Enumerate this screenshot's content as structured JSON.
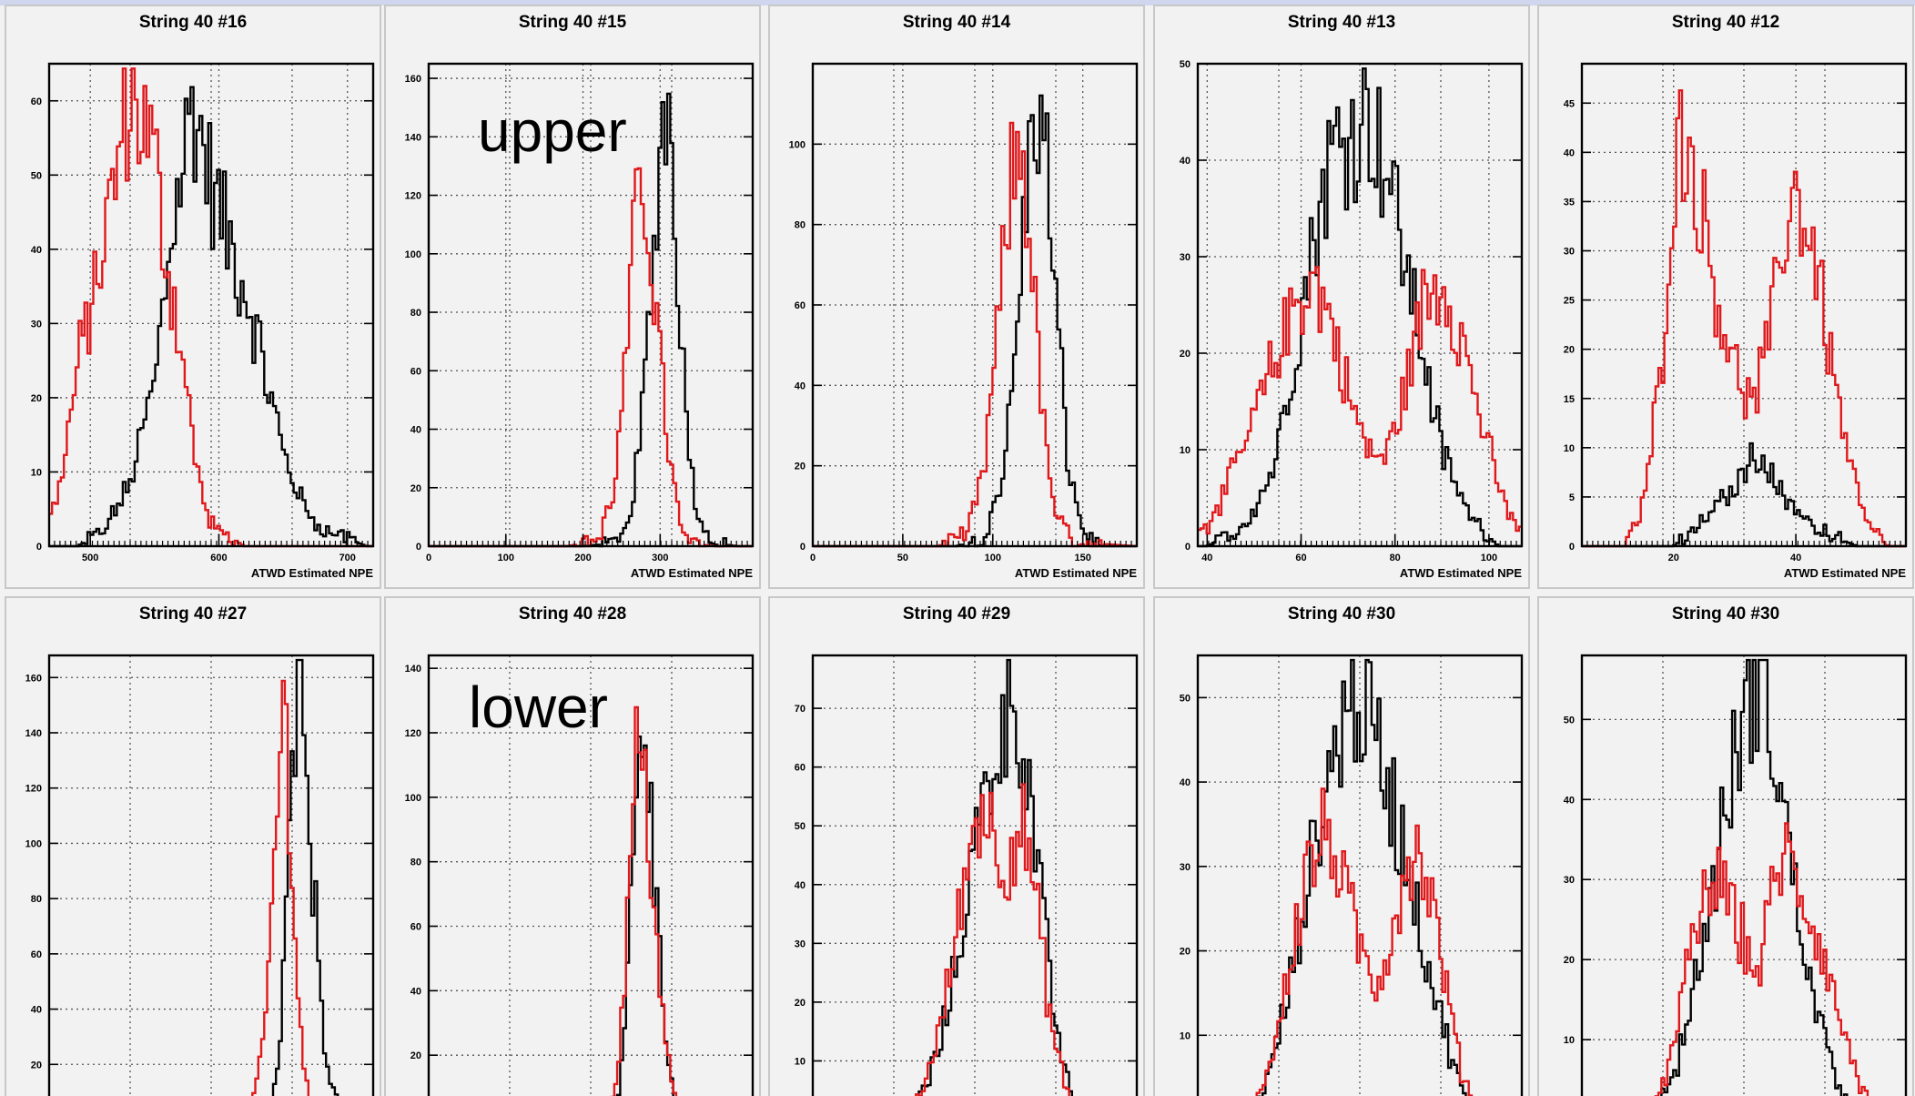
{
  "annotations": {
    "upper": "upper",
    "lower": "lower"
  },
  "colors": {
    "series_a": "#000000",
    "series_b": "#e0181b",
    "frame": "#000000",
    "grid": "#555555",
    "panel_bg": "#f2f2f2",
    "plot_bg": "#f2f2f2"
  },
  "chart_data": [
    {
      "type": "line",
      "title": "String 40 #16",
      "xlabel": "ATWD Estimated NPE",
      "xlim": [
        468,
        720
      ],
      "ylim": [
        0,
        65
      ],
      "xticks": [
        500,
        600,
        700
      ],
      "xtick_labels": [
        "500",
        "600",
        "700"
      ],
      "yticks": [
        0,
        10,
        20,
        30,
        40,
        50,
        60
      ],
      "ytick_labels": [
        "0",
        "10",
        "20",
        "30",
        "40",
        "50",
        "60"
      ],
      "series": [
        {
          "name": "",
          "color": "#000000",
          "x": [
            470,
            490,
            510,
            530,
            550,
            565,
            580,
            595,
            610,
            625,
            640,
            655,
            670,
            685,
            700,
            715
          ],
          "y": [
            0,
            0,
            2,
            8,
            22,
            45,
            60,
            48,
            40,
            32,
            20,
            10,
            4,
            2,
            1,
            0
          ]
        },
        {
          "name": "",
          "color": "#e0181b",
          "x": [
            470,
            480,
            490,
            500,
            510,
            520,
            530,
            540,
            550,
            560,
            570,
            580,
            590,
            600,
            610,
            620
          ],
          "y": [
            4,
            12,
            24,
            32,
            40,
            50,
            60,
            58,
            52,
            38,
            28,
            14,
            4,
            2,
            1,
            0
          ]
        }
      ]
    },
    {
      "type": "line",
      "title": "String 40 #15",
      "xlabel": "ATWD Estimated NPE",
      "xlim": [
        0,
        420
      ],
      "ylim": [
        0,
        165
      ],
      "xticks": [
        0,
        100,
        200,
        300
      ],
      "xtick_labels": [
        "0",
        "100",
        "200",
        "300"
      ],
      "yticks": [
        0,
        20,
        40,
        60,
        80,
        100,
        120,
        140,
        160
      ],
      "ytick_labels": [
        "0",
        "20",
        "40",
        "60",
        "80",
        "100",
        "120",
        "140",
        "160"
      ],
      "series": [
        {
          "name": "",
          "color": "#000000",
          "x": [
            0,
            200,
            240,
            260,
            275,
            290,
            300,
            310,
            320,
            335,
            350,
            370,
            400,
            420
          ],
          "y": [
            0,
            0,
            1,
            8,
            40,
            90,
            140,
            155,
            110,
            40,
            8,
            1,
            0,
            0
          ]
        },
        {
          "name": "",
          "color": "#e0181b",
          "x": [
            0,
            180,
            220,
            240,
            255,
            265,
            275,
            285,
            295,
            310,
            325,
            345,
            370,
            420
          ],
          "y": [
            0,
            0,
            2,
            18,
            60,
            100,
            130,
            110,
            80,
            35,
            8,
            1,
            0,
            0
          ]
        }
      ]
    },
    {
      "type": "line",
      "title": "String 40 #14",
      "xlabel": "ATWD Estimated NPE",
      "xlim": [
        0,
        180
      ],
      "ylim": [
        0,
        120
      ],
      "xticks": [
        0,
        50,
        100,
        150
      ],
      "xtick_labels": [
        "0",
        "50",
        "100",
        "150"
      ],
      "yticks": [
        0,
        20,
        40,
        60,
        80,
        100
      ],
      "ytick_labels": [
        "0",
        "20",
        "40",
        "60",
        "80",
        "100"
      ],
      "series": [
        {
          "name": "",
          "color": "#000000",
          "x": [
            0,
            80,
            95,
            105,
            112,
            118,
            124,
            130,
            136,
            142,
            150,
            160,
            180
          ],
          "y": [
            0,
            0,
            2,
            15,
            45,
            85,
            110,
            95,
            55,
            20,
            4,
            0,
            0
          ]
        },
        {
          "name": "",
          "color": "#e0181b",
          "x": [
            0,
            70,
            85,
            95,
            103,
            110,
            116,
            122,
            128,
            135,
            145,
            180
          ],
          "y": [
            0,
            0,
            3,
            18,
            55,
            90,
            100,
            70,
            30,
            8,
            1,
            0
          ]
        }
      ]
    },
    {
      "type": "line",
      "title": "String 40 #13",
      "xlabel": "ATWD Estimated NPE",
      "xlim": [
        38,
        107
      ],
      "ylim": [
        0,
        50
      ],
      "xticks": [
        40,
        60,
        80,
        100
      ],
      "xtick_labels": [
        "40",
        "60",
        "80",
        "100"
      ],
      "yticks": [
        0,
        10,
        20,
        30,
        40,
        50
      ],
      "ytick_labels": [
        "0",
        "10",
        "20",
        "30",
        "40",
        "50"
      ],
      "series": [
        {
          "name": "",
          "color": "#000000",
          "x": [
            40,
            48,
            54,
            58,
            62,
            66,
            70,
            74,
            78,
            82,
            86,
            90,
            94,
            98,
            102,
            106
          ],
          "y": [
            0,
            2,
            8,
            18,
            30,
            40,
            43,
            45,
            40,
            30,
            20,
            10,
            5,
            2,
            0,
            0
          ]
        },
        {
          "name": "",
          "color": "#e0181b",
          "x": [
            40,
            46,
            52,
            58,
            62,
            66,
            70,
            74,
            78,
            82,
            86,
            90,
            94,
            98,
            102,
            106
          ],
          "y": [
            2,
            8,
            16,
            24,
            28,
            24,
            16,
            10,
            9,
            16,
            25,
            28,
            22,
            14,
            6,
            2
          ]
        }
      ]
    },
    {
      "type": "line",
      "title": "String 40 #12",
      "xlabel": "ATWD Estimated NPE",
      "xlim": [
        5,
        58
      ],
      "ylim": [
        0,
        49
      ],
      "xticks": [
        20,
        40
      ],
      "xtick_labels": [
        "20",
        "40"
      ],
      "yticks": [
        0,
        5,
        10,
        15,
        20,
        25,
        30,
        35,
        40,
        45
      ],
      "ytick_labels": [
        "0",
        "5",
        "10",
        "15",
        "20",
        "25",
        "30",
        "35",
        "40",
        "45"
      ],
      "series": [
        {
          "name": "",
          "color": "#000000",
          "x": [
            6,
            20,
            24,
            27,
            30,
            32,
            34,
            36,
            38,
            40,
            43,
            46,
            50,
            58
          ],
          "y": [
            0,
            0,
            2,
            4,
            6,
            8,
            10,
            7,
            5,
            4,
            2,
            1,
            0,
            0
          ]
        },
        {
          "name": "",
          "color": "#e0181b",
          "x": [
            6,
            12,
            15,
            18,
            20,
            22,
            24,
            27,
            30,
            33,
            36,
            38,
            40,
            43,
            46,
            49,
            52,
            55
          ],
          "y": [
            0,
            0,
            4,
            18,
            38,
            42,
            36,
            26,
            18,
            14,
            22,
            32,
            36,
            30,
            18,
            8,
            2,
            0
          ]
        }
      ]
    },
    {
      "type": "line",
      "title": "String 40 #27",
      "xlabel": "",
      "xlim": [
        0,
        400
      ],
      "ylim": [
        0,
        168
      ],
      "xticks": [],
      "xtick_labels": [],
      "yticks": [
        20,
        40,
        60,
        80,
        100,
        120,
        140,
        160
      ],
      "ytick_labels": [
        "20",
        "40",
        "60",
        "80",
        "100",
        "120",
        "140",
        "160"
      ],
      "series": [
        {
          "name": "",
          "color": "#000000",
          "x": [
            260,
            275,
            285,
            292,
            300,
            306,
            312,
            320,
            330,
            340,
            350,
            365
          ],
          "y": [
            0,
            5,
            25,
            70,
            120,
            150,
            140,
            110,
            70,
            30,
            10,
            0
          ]
        },
        {
          "name": "",
          "color": "#e0181b",
          "x": [
            240,
            255,
            268,
            278,
            286,
            292,
            298,
            305,
            312,
            322,
            335
          ],
          "y": [
            0,
            8,
            40,
            95,
            140,
            145,
            110,
            60,
            25,
            5,
            0
          ]
        }
      ]
    },
    {
      "type": "line",
      "title": "String 40 #28",
      "xlabel": "",
      "xlim": [
        0,
        400
      ],
      "ylim": [
        0,
        144
      ],
      "xticks": [],
      "xtick_labels": [],
      "yticks": [
        20,
        40,
        60,
        80,
        100,
        120,
        140
      ],
      "ytick_labels": [
        "20",
        "40",
        "60",
        "80",
        "100",
        "120",
        "140"
      ],
      "series": [
        {
          "name": "",
          "color": "#000000",
          "x": [
            220,
            235,
            245,
            252,
            258,
            264,
            270,
            278,
            286,
            295,
            305,
            320
          ],
          "y": [
            0,
            10,
            40,
            80,
            120,
            130,
            110,
            80,
            45,
            20,
            5,
            0
          ]
        },
        {
          "name": "",
          "color": "#e0181b",
          "x": [
            220,
            232,
            242,
            250,
            257,
            263,
            270,
            278,
            286,
            295,
            305,
            318
          ],
          "y": [
            0,
            12,
            45,
            85,
            115,
            110,
            95,
            70,
            40,
            18,
            4,
            0
          ]
        }
      ]
    },
    {
      "type": "line",
      "title": "String 40 #29",
      "xlabel": "",
      "xlim": [
        0,
        100
      ],
      "ylim": [
        0,
        79
      ],
      "xticks": [],
      "xtick_labels": [],
      "yticks": [
        10,
        20,
        30,
        40,
        50,
        60,
        70
      ],
      "ytick_labels": [
        "10",
        "20",
        "30",
        "40",
        "50",
        "60",
        "70"
      ],
      "series": [
        {
          "name": "",
          "color": "#000000",
          "x": [
            30,
            38,
            44,
            48,
            52,
            56,
            60,
            63,
            66,
            70,
            74,
            78,
            82
          ],
          "y": [
            0,
            10,
            25,
            40,
            52,
            62,
            70,
            72,
            60,
            40,
            20,
            8,
            0
          ]
        },
        {
          "name": "",
          "color": "#e0181b",
          "x": [
            30,
            38,
            44,
            48,
            52,
            56,
            60,
            63,
            66,
            70,
            74,
            78,
            82
          ],
          "y": [
            0,
            12,
            30,
            45,
            55,
            48,
            44,
            50,
            48,
            32,
            15,
            5,
            0
          ]
        }
      ]
    },
    {
      "type": "line",
      "title": "String 40 #30",
      "xlabel": "",
      "xlim": [
        0,
        100
      ],
      "ylim": [
        0,
        55
      ],
      "xticks": [],
      "xtick_labels": [],
      "yticks": [
        10,
        20,
        30,
        40,
        50
      ],
      "ytick_labels": [
        "10",
        "20",
        "30",
        "40",
        "50"
      ],
      "series": [
        {
          "name": "",
          "color": "#000000",
          "x": [
            15,
            22,
            28,
            34,
            40,
            45,
            50,
            55,
            60,
            65,
            70,
            75,
            80,
            86
          ],
          "y": [
            0,
            5,
            15,
            28,
            40,
            48,
            50,
            45,
            38,
            30,
            20,
            12,
            5,
            0
          ]
        },
        {
          "name": "",
          "color": "#e0181b",
          "x": [
            15,
            22,
            28,
            34,
            40,
            45,
            50,
            55,
            60,
            65,
            70,
            75,
            80,
            86
          ],
          "y": [
            0,
            6,
            18,
            30,
            34,
            28,
            20,
            16,
            22,
            32,
            30,
            20,
            8,
            0
          ]
        }
      ]
    },
    {
      "type": "line",
      "title": "String 40 #30",
      "xlabel": "",
      "xlim": [
        0,
        100
      ],
      "ylim": [
        0,
        58
      ],
      "xticks": [],
      "xtick_labels": [],
      "yticks": [
        10,
        20,
        30,
        40,
        50
      ],
      "ytick_labels": [
        "10",
        "20",
        "30",
        "40",
        "50"
      ],
      "series": [
        {
          "name": "",
          "color": "#000000",
          "x": [
            20,
            28,
            34,
            40,
            45,
            50,
            54,
            58,
            62,
            66,
            70,
            75,
            80,
            86
          ],
          "y": [
            0,
            5,
            15,
            28,
            40,
            50,
            55,
            50,
            40,
            28,
            18,
            10,
            4,
            0
          ]
        },
        {
          "name": "",
          "color": "#e0181b",
          "x": [
            20,
            28,
            34,
            40,
            45,
            50,
            54,
            58,
            62,
            66,
            70,
            75,
            80,
            86,
            92
          ],
          "y": [
            0,
            8,
            22,
            30,
            28,
            22,
            18,
            26,
            34,
            30,
            26,
            20,
            12,
            4,
            0
          ]
        }
      ]
    }
  ]
}
